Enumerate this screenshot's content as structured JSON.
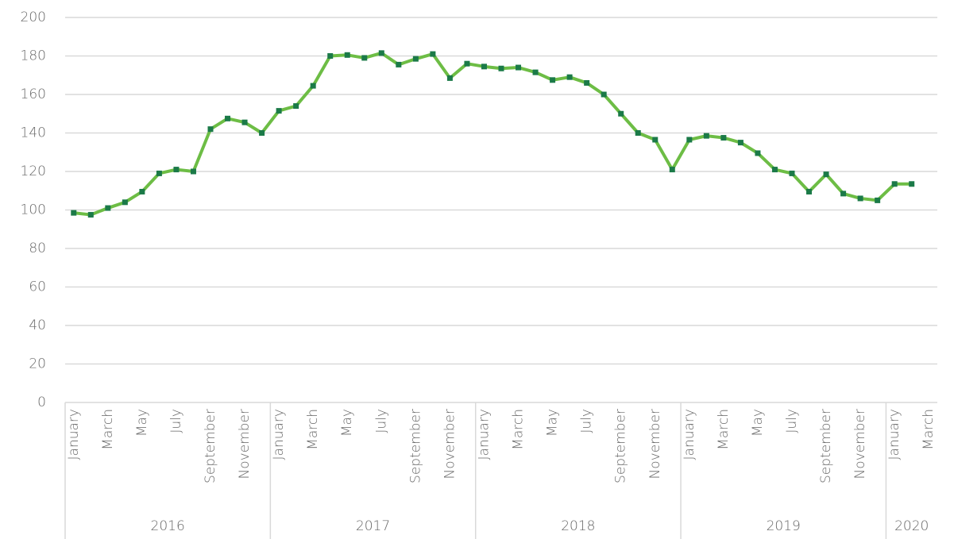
{
  "chart_data": {
    "type": "line",
    "categories": [
      "January",
      null,
      "March",
      null,
      "May",
      null,
      "July",
      null,
      "September",
      null,
      "November",
      null,
      "January",
      null,
      "March",
      null,
      "May",
      null,
      "July",
      null,
      "September",
      null,
      "November",
      null,
      "January",
      null,
      "March",
      null,
      "May",
      null,
      "July",
      null,
      "September",
      null,
      "November",
      null,
      "January",
      null,
      "March",
      null,
      "May",
      null,
      "July",
      null,
      "September",
      null,
      "November",
      null,
      "January",
      null,
      "March"
    ],
    "year_labels": [
      "2016",
      "2017",
      "2018",
      "2019",
      "2020"
    ],
    "series": [
      {
        "color": "#6dbd45",
        "marker_color": "#1b7a48",
        "values": [
          98.5,
          97.5,
          101,
          104,
          109.5,
          119,
          121,
          120,
          142,
          147.5,
          145.5,
          140,
          151.5,
          154,
          164.5,
          180,
          180.5,
          179,
          181.5,
          175.5,
          178.5,
          181,
          168.5,
          176,
          174.5,
          173.5,
          174,
          171.5,
          167.5,
          169,
          166,
          160,
          150,
          140,
          136.5,
          121,
          136.5,
          138.5,
          137.5,
          135,
          129.5,
          121,
          119,
          109.5,
          118.5,
          108.5,
          106,
          105,
          113.5,
          113.5,
          null
        ]
      }
    ],
    "ylim": [
      0,
      200
    ],
    "yticks": [
      0,
      20,
      40,
      60,
      80,
      100,
      120,
      140,
      160,
      180,
      200
    ],
    "grid": true
  }
}
